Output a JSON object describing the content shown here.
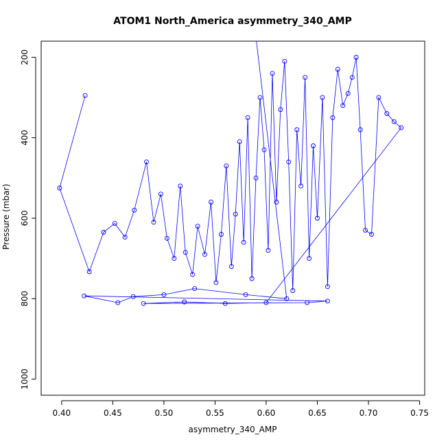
{
  "chart_data": {
    "type": "scatter",
    "title": "ATOM1 North_America asymmetry_340_AMP",
    "xlabel": "asymmetry_340_AMP",
    "ylabel": "Pressure (mbar)",
    "xlim": [
      0.38,
      0.755
    ],
    "ylim": [
      1040,
      160
    ],
    "y_reversed": true,
    "x_ticks": [
      "0.40",
      "0.45",
      "0.50",
      "0.55",
      "0.60",
      "0.65",
      "0.70",
      "0.75"
    ],
    "y_ticks": [
      "200",
      "400",
      "600",
      "800",
      "1000"
    ],
    "series_style": {
      "color": "#0000ff",
      "marker": "open-circle",
      "lines": true
    },
    "grid": false,
    "legend": "none",
    "series": [
      {
        "values": [
          [
            0.423,
            295
          ],
          [
            0.398,
            525
          ],
          [
            0.427,
            733
          ],
          [
            0.441,
            635
          ],
          [
            0.452,
            613
          ],
          [
            0.462,
            647
          ],
          [
            0.471,
            580
          ],
          [
            0.483,
            460
          ],
          [
            0.49,
            610
          ],
          [
            0.497,
            540
          ],
          [
            0.503,
            650
          ],
          [
            0.51,
            700
          ],
          [
            0.516,
            520
          ],
          [
            0.521,
            685
          ],
          [
            0.528,
            740
          ],
          [
            0.533,
            620
          ],
          [
            0.54,
            690
          ],
          [
            0.546,
            560
          ],
          [
            0.551,
            760
          ],
          [
            0.556,
            640
          ],
          [
            0.561,
            470
          ],
          [
            0.566,
            720
          ],
          [
            0.57,
            590
          ],
          [
            0.574,
            410
          ],
          [
            0.578,
            660
          ],
          [
            0.582,
            350
          ],
          [
            0.586,
            750
          ],
          [
            0.59,
            500
          ],
          [
            0.594,
            300
          ],
          [
            0.598,
            430
          ],
          [
            0.602,
            680
          ],
          [
            0.606,
            240
          ],
          [
            0.61,
            560
          ],
          [
            0.614,
            330
          ],
          [
            0.618,
            210
          ],
          [
            0.622,
            460
          ],
          [
            0.626,
            780
          ],
          [
            0.63,
            380
          ],
          [
            0.634,
            520
          ],
          [
            0.638,
            250
          ],
          [
            0.642,
            700
          ],
          [
            0.646,
            420
          ],
          [
            0.65,
            600
          ],
          [
            0.655,
            300
          ],
          [
            0.66,
            770
          ],
          [
            0.665,
            350
          ],
          [
            0.67,
            230
          ],
          [
            0.675,
            320
          ],
          [
            0.68,
            290
          ],
          [
            0.684,
            250
          ],
          [
            0.688,
            200
          ],
          [
            0.692,
            380
          ],
          [
            0.697,
            630
          ],
          [
            0.703,
            640
          ],
          [
            0.71,
            300
          ],
          [
            0.718,
            340
          ],
          [
            0.725,
            360
          ],
          [
            0.732,
            375
          ],
          [
            0.6,
            810
          ],
          [
            0.56,
            812
          ],
          [
            0.52,
            808
          ],
          [
            0.48,
            812
          ],
          [
            0.64,
            810
          ],
          [
            0.66,
            806
          ],
          [
            0.422,
            793
          ],
          [
            0.455,
            810
          ],
          [
            0.47,
            795
          ],
          [
            0.5,
            790
          ],
          [
            0.53,
            775
          ],
          [
            0.58,
            790
          ],
          [
            0.62,
            800
          ],
          [
            0.59,
            150
          ]
        ]
      }
    ]
  }
}
